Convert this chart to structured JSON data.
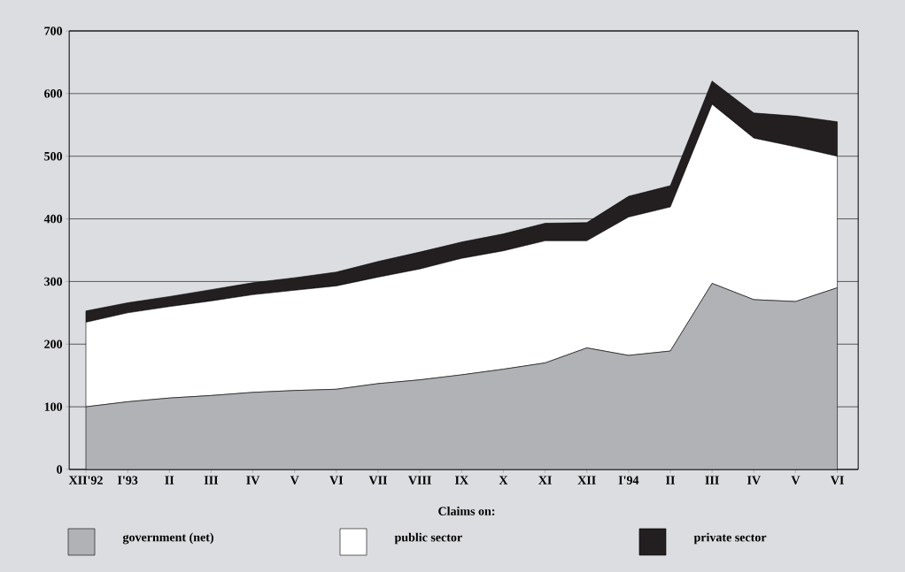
{
  "chart_data": {
    "type": "area",
    "stacked": true,
    "categories": [
      "XII'92",
      "I'93",
      "II",
      "III",
      "IV",
      "V",
      "VI",
      "VII",
      "VIII",
      "IX",
      "X",
      "XI",
      "XII",
      "I'94",
      "II",
      "III",
      "IV",
      "V",
      "VI"
    ],
    "legend_title": "Claims on:",
    "series": [
      {
        "name": "government (net)",
        "color": "#b1b2b6",
        "values": [
          100,
          108,
          114,
          118,
          123,
          126,
          128,
          137,
          143,
          151,
          160,
          170,
          194,
          182,
          189,
          297,
          271,
          268,
          290
        ]
      },
      {
        "name": "public sector",
        "color": "#ffffff",
        "values": [
          135,
          142,
          146,
          151,
          156,
          160,
          165,
          170,
          177,
          186,
          189,
          195,
          171,
          221,
          230,
          286,
          258,
          247,
          210
        ]
      },
      {
        "name": "private sector",
        "color": "#231f20",
        "values": [
          18,
          16,
          16,
          18,
          19,
          20,
          22,
          25,
          27,
          26,
          27,
          28,
          29,
          33,
          34,
          37,
          40,
          49,
          55
        ]
      }
    ],
    "ylim": [
      0,
      700
    ],
    "yticks": [
      0,
      100,
      200,
      300,
      400,
      500,
      600,
      700
    ],
    "grid": "y",
    "legend": "bottom"
  }
}
